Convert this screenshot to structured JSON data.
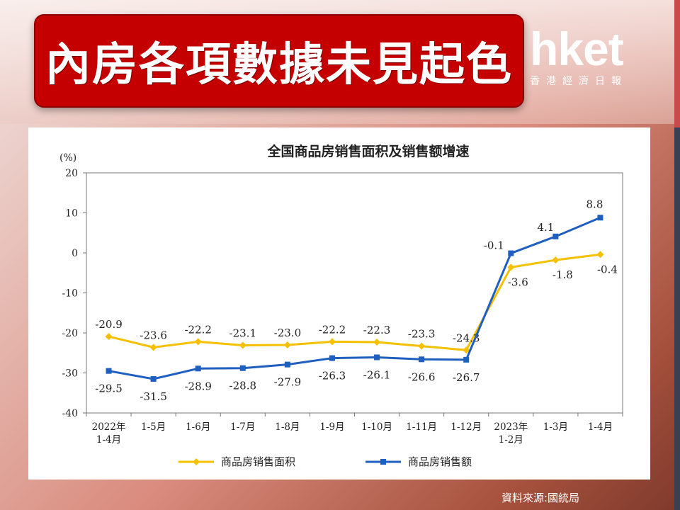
{
  "header": {
    "title": "內房各項數據未見起色",
    "logo_main": "hket",
    "logo_sub": "香港經濟日報"
  },
  "footer": {
    "source": "資料來源:國統局"
  },
  "colors": {
    "title_bg": "#c40000",
    "series_area": "#f5c000",
    "series_sales": "#1f5fbf"
  },
  "chart_data": {
    "type": "line",
    "title": "全国商品房销售面积及销售额增速",
    "ylabel": "(%)",
    "ylim": [
      -40,
      20
    ],
    "yticks": [
      20,
      10,
      0,
      -10,
      -20,
      -30,
      -40
    ],
    "categories": [
      [
        "2022年",
        "1-4月"
      ],
      [
        "1-5月"
      ],
      [
        "1-6月"
      ],
      [
        "1-7月"
      ],
      [
        "1-8月"
      ],
      [
        "1-9月"
      ],
      [
        "1-10月"
      ],
      [
        "1-11月"
      ],
      [
        "1-12月"
      ],
      [
        "2023年",
        "1-2月"
      ],
      [
        "1-3月"
      ],
      [
        "1-4月"
      ]
    ],
    "series": [
      {
        "name": "商品房销售面积",
        "marker": "diamond",
        "color": "#f5c000",
        "values": [
          -20.9,
          -23.6,
          -22.2,
          -23.1,
          -23.0,
          -22.2,
          -22.3,
          -23.3,
          -24.3,
          -3.6,
          -1.8,
          -0.4
        ],
        "labels": [
          "-20.9",
          "-23.6",
          "-22.2",
          "-23.1",
          "-23.0",
          "-22.2",
          "-22.3",
          "-23.3",
          "-24.3",
          "-3.6",
          "-1.8",
          "-0.4"
        ]
      },
      {
        "name": "商品房销售额",
        "marker": "square",
        "color": "#1f5fbf",
        "values": [
          -29.5,
          -31.5,
          -28.9,
          -28.8,
          -27.9,
          -26.3,
          -26.1,
          -26.6,
          -26.7,
          -0.1,
          4.1,
          8.8
        ],
        "labels": [
          "-29.5",
          "-31.5",
          "-28.9",
          "-28.8",
          "-27.9",
          "-26.3",
          "-26.1",
          "-26.6",
          "-26.7",
          "-0.1",
          "4.1",
          "8.8"
        ]
      }
    ],
    "grid": false,
    "legend": "bottom"
  }
}
